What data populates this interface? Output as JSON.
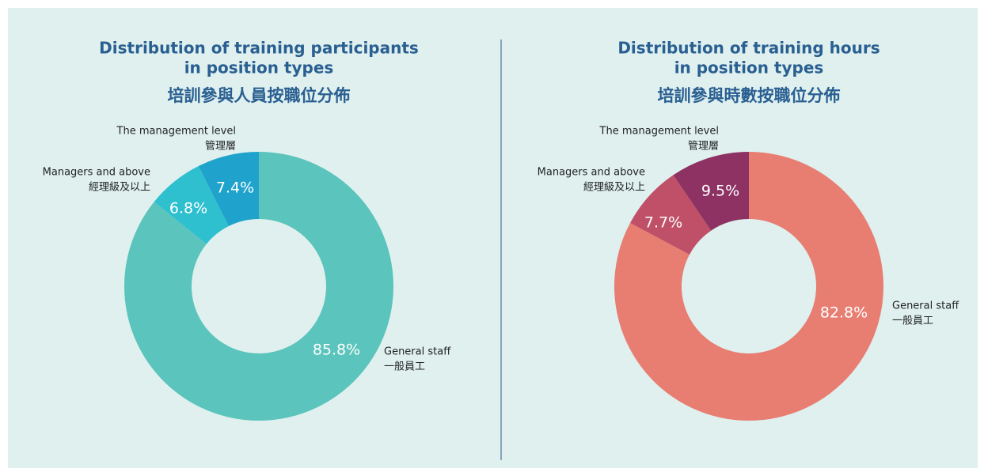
{
  "chart_data": [
    {
      "type": "pie",
      "title": [
        "Distribution of training participants",
        "in position types"
      ],
      "subtitle": "培訓參與人員按職位分佈",
      "categories": [
        "General staff",
        "Managers and above",
        "The management level"
      ],
      "categories_zh": [
        "一般員工",
        "經理級及以上",
        "管理層"
      ],
      "values": [
        85.8,
        6.8,
        7.4
      ],
      "value_labels": [
        "85.8%",
        "6.8%",
        "7.4%"
      ],
      "colors": [
        "#5bc4bc",
        "#2ec0cf",
        "#1fa3cc"
      ]
    },
    {
      "type": "pie",
      "title": [
        "Distribution of training hours",
        "in position types"
      ],
      "subtitle": "培訓參與時數按職位分佈",
      "categories": [
        "General staff",
        "Managers and above",
        "The management level"
      ],
      "categories_zh": [
        "一般員工",
        "經理級及以上",
        "管理層"
      ],
      "values": [
        82.8,
        7.7,
        9.5
      ],
      "value_labels": [
        "82.8%",
        "7.7%",
        "9.5%"
      ],
      "colors": [
        "#e87e72",
        "#c05068",
        "#8e3264"
      ]
    }
  ]
}
